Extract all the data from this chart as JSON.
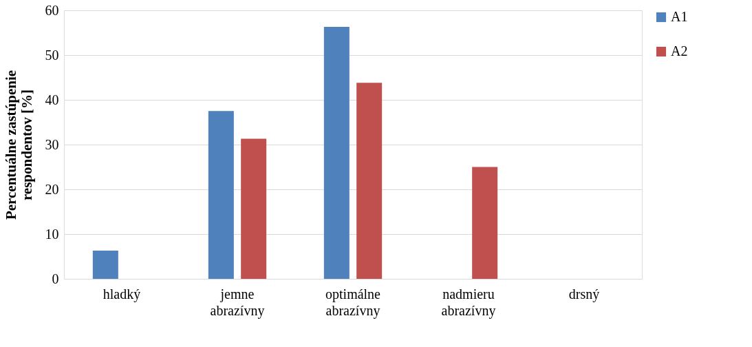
{
  "chart_data": {
    "type": "bar",
    "categories": [
      "hladký",
      "jemne abrazívny",
      "optimálne abrazívny",
      "nadmieru abrazívny",
      "drsný"
    ],
    "series": [
      {
        "name": "A1",
        "color": "#4f81bd",
        "values": [
          6.3,
          37.5,
          56.3,
          0,
          0
        ]
      },
      {
        "name": "A2",
        "color": "#c0504d",
        "values": [
          0,
          31.3,
          43.8,
          25,
          0
        ]
      }
    ],
    "ylabel": "Percentuálne zastúpenie respondentov [%]",
    "ylim": [
      0,
      60
    ],
    "yticks": [
      0,
      10,
      20,
      30,
      40,
      50,
      60
    ],
    "grid": "y",
    "legend": "right"
  }
}
